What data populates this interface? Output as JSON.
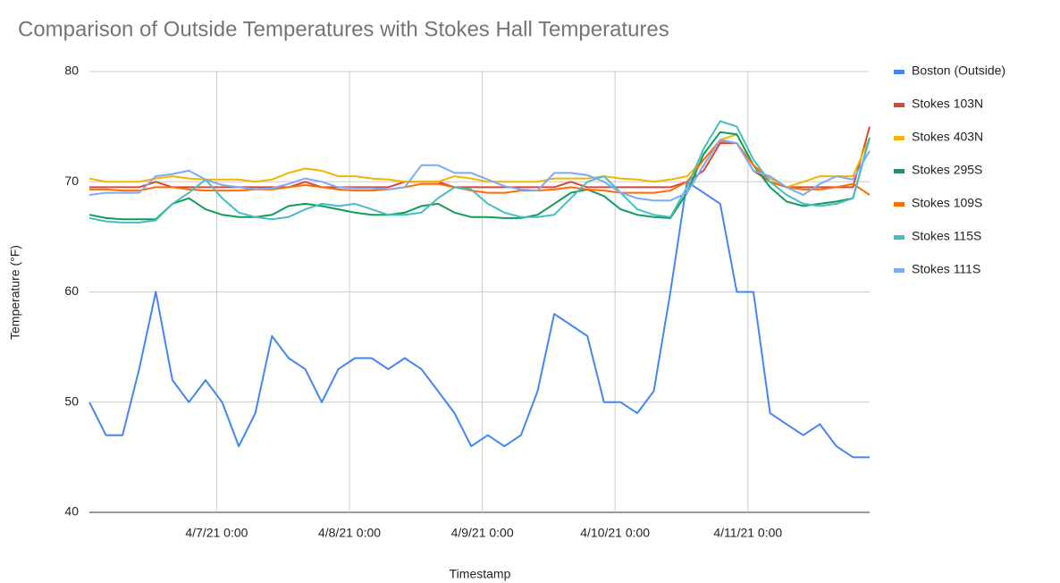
{
  "chart_data": {
    "type": "line",
    "title": "Comparison of Outside Temperatures with Stokes Hall Temperatures",
    "x_label": "Timestamp",
    "y_label": "Temperature (°F)",
    "grid": true,
    "legend": "right",
    "xlim": [
      "4/6/21 1:00",
      "4/11/21 22:00"
    ],
    "xticks": [
      "4/7/21 0:00",
      "4/8/21 0:00",
      "4/9/21 0:00",
      "4/10/21 0:00",
      "4/11/21 0:00"
    ],
    "ylim": [
      40,
      80
    ],
    "yticks": [
      40,
      50,
      60,
      70,
      80
    ],
    "x": [
      "4/6/21 1:00",
      "4/6/21 4:00",
      "4/6/21 7:00",
      "4/6/21 10:00",
      "4/6/21 13:00",
      "4/6/21 16:00",
      "4/6/21 19:00",
      "4/6/21 22:00",
      "4/7/21 1:00",
      "4/7/21 4:00",
      "4/7/21 7:00",
      "4/7/21 10:00",
      "4/7/21 13:00",
      "4/7/21 16:00",
      "4/7/21 19:00",
      "4/7/21 22:00",
      "4/8/21 1:00",
      "4/8/21 4:00",
      "4/8/21 7:00",
      "4/8/21 10:00",
      "4/8/21 13:00",
      "4/8/21 16:00",
      "4/8/21 19:00",
      "4/8/21 22:00",
      "4/9/21 1:00",
      "4/9/21 4:00",
      "4/9/21 7:00",
      "4/9/21 10:00",
      "4/9/21 13:00",
      "4/9/21 16:00",
      "4/9/21 19:00",
      "4/9/21 22:00",
      "4/10/21 1:00",
      "4/10/21 4:00",
      "4/10/21 7:00",
      "4/10/21 10:00",
      "4/10/21 13:00",
      "4/10/21 16:00",
      "4/10/21 19:00",
      "4/10/21 22:00",
      "4/11/21 1:00",
      "4/11/21 4:00",
      "4/11/21 7:00",
      "4/11/21 10:00",
      "4/11/21 13:00",
      "4/11/21 16:00",
      "4/11/21 19:00",
      "4/11/21 22:00"
    ],
    "series": [
      {
        "name": "Boston (Outside)",
        "color": "#4285f4",
        "values": [
          50,
          47,
          47,
          53,
          60,
          52,
          50,
          52,
          50,
          46,
          49,
          56,
          54,
          53,
          50,
          53,
          54,
          54,
          53,
          54,
          53,
          51,
          49,
          46,
          47,
          46,
          47,
          51,
          58,
          57,
          56,
          50,
          50,
          49,
          51,
          60,
          70,
          69,
          68,
          60,
          60,
          49,
          48,
          47,
          48,
          46,
          45,
          45
        ]
      },
      {
        "name": "Stokes 103N",
        "color": "#db4437",
        "values": [
          69.5,
          69.5,
          69.5,
          69.5,
          70,
          69.5,
          69.5,
          69.5,
          69.5,
          69.5,
          69.5,
          69.5,
          69.5,
          70,
          69.5,
          69.5,
          69.5,
          69.5,
          69.5,
          70,
          70,
          70,
          69.5,
          69.5,
          69.5,
          69.5,
          69.5,
          69.5,
          69.5,
          70,
          69.5,
          69.5,
          69.5,
          69.5,
          69.5,
          69.5,
          70,
          71,
          73.5,
          73.5,
          71,
          70,
          69.5,
          69.5,
          69.5,
          69.5,
          69.5,
          75
        ]
      },
      {
        "name": "Stokes 403N",
        "color": "#f4b400",
        "values": [
          70.3,
          70,
          70,
          70,
          70.3,
          70.5,
          70.3,
          70.2,
          70.2,
          70.2,
          70,
          70.2,
          70.8,
          71.2,
          71,
          70.5,
          70.5,
          70.3,
          70.2,
          70,
          70,
          70,
          70.5,
          70.3,
          70,
          70,
          70,
          70,
          70.3,
          70.3,
          70.3,
          70.5,
          70.3,
          70.2,
          70,
          70.2,
          70.5,
          72,
          73.8,
          74.3,
          71.5,
          70.3,
          69.5,
          70,
          70.5,
          70.5,
          70.5,
          74
        ]
      },
      {
        "name": "Stokes 295S",
        "color": "#0f9d58",
        "values": [
          67,
          66.7,
          66.6,
          66.6,
          66.6,
          68,
          68.5,
          67.5,
          67,
          66.8,
          66.8,
          67,
          67.8,
          68,
          67.8,
          67.5,
          67.2,
          67,
          67,
          67.2,
          67.8,
          68,
          67.2,
          66.8,
          66.8,
          66.7,
          66.7,
          67,
          68,
          69,
          69.3,
          68.7,
          67.5,
          67,
          66.8,
          66.7,
          69,
          72.5,
          74.5,
          74.3,
          71.5,
          69.5,
          68.2,
          67.8,
          68,
          68.2,
          68.5,
          74
        ]
      },
      {
        "name": "Stokes 109S",
        "color": "#ff6d01",
        "values": [
          69.3,
          69.3,
          69.2,
          69.2,
          69.5,
          69.5,
          69.3,
          69.2,
          69.2,
          69.2,
          69.3,
          69.3,
          69.5,
          69.7,
          69.5,
          69.3,
          69.2,
          69.2,
          69.3,
          69.5,
          69.8,
          69.8,
          69.5,
          69.2,
          69,
          69,
          69.2,
          69.2,
          69.3,
          69.5,
          69.3,
          69.2,
          69,
          69,
          69,
          69.2,
          70,
          72,
          73.7,
          73.5,
          71.5,
          70,
          69.5,
          69.3,
          69.3,
          69.5,
          69.8,
          68.8
        ]
      },
      {
        "name": "Stokes 115S",
        "color": "#46bdc6",
        "values": [
          66.7,
          66.4,
          66.3,
          66.3,
          66.5,
          68,
          69,
          70.2,
          68.5,
          67.2,
          66.8,
          66.6,
          66.8,
          67.5,
          68,
          67.8,
          68,
          67.5,
          67,
          67,
          67.2,
          68.5,
          69.5,
          69.3,
          68,
          67.2,
          66.8,
          66.8,
          67,
          68.5,
          70,
          70.5,
          69,
          67.5,
          67,
          66.8,
          69.5,
          73,
          75.5,
          75,
          72,
          70,
          68.8,
          68,
          67.8,
          68,
          68.5,
          74
        ]
      },
      {
        "name": "Stokes 111S",
        "color": "#7baaf7",
        "values": [
          68.8,
          69,
          69,
          69,
          70.5,
          70.7,
          71,
          70.2,
          69.7,
          69.5,
          69.3,
          69.4,
          69.8,
          70.3,
          70,
          69.5,
          69.4,
          69.4,
          69.3,
          69.5,
          71.5,
          71.5,
          70.8,
          70.8,
          70.2,
          69.6,
          69.3,
          69.2,
          70.8,
          70.8,
          70.6,
          70,
          69,
          68.5,
          68.3,
          68.3,
          69,
          71.5,
          73.8,
          73.5,
          71,
          70.5,
          69.5,
          68.8,
          69.8,
          70.5,
          70.2,
          72.8
        ]
      }
    ]
  }
}
